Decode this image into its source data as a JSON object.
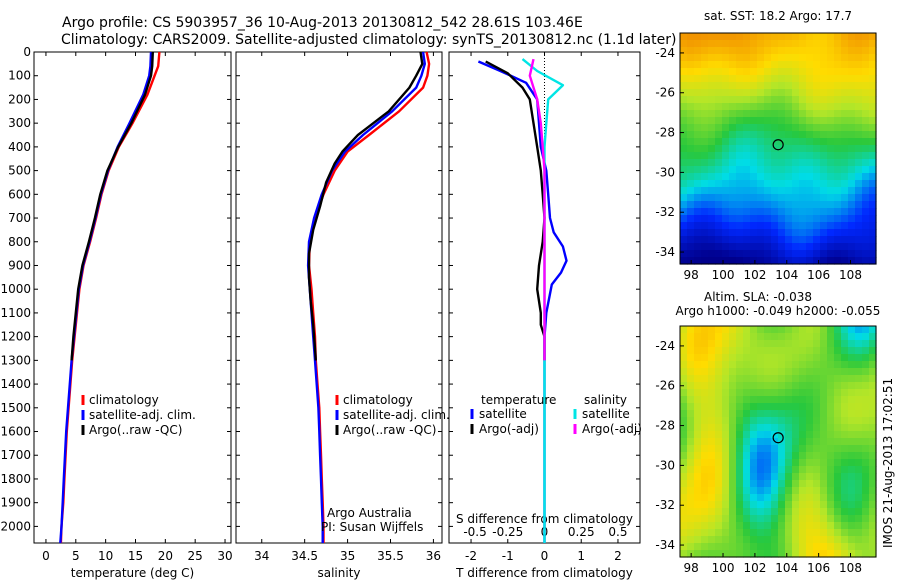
{
  "header": {
    "line1": "Argo profile: CS 5903957_36 10-Aug-2013 20130812_542 28.61S 103.46E",
    "line2": "Climatology: CARS2009. Satellite-adjusted climatology: synTS_20130812.nc (1.1d later)"
  },
  "colors": {
    "climatology": "#ff0000",
    "satellite": "#0000ff",
    "argo": "#000000",
    "cyan": "#00e5e5",
    "magenta": "#ff00ff"
  },
  "chart_data": [
    {
      "type": "line",
      "xlabel": "temperature (deg C)",
      "xlim": [
        -2,
        31
      ],
      "xticks": [
        0,
        5,
        10,
        15,
        20,
        25,
        30
      ],
      "ylim": [
        0,
        2070
      ],
      "yticks": [
        0,
        100,
        200,
        300,
        400,
        500,
        600,
        700,
        800,
        900,
        1000,
        1100,
        1200,
        1300,
        1400,
        1500,
        1600,
        1700,
        1800,
        1900,
        2000
      ],
      "legend": [
        "climatology",
        "satellite-adj. clim.",
        "Argo(..raw -QC)"
      ],
      "series": [
        {
          "name": "climatology",
          "color": "climatology",
          "points": [
            [
              19,
              0
            ],
            [
              18.8,
              60
            ],
            [
              18.2,
              100
            ],
            [
              17,
              180
            ],
            [
              14.5,
              300
            ],
            [
              12.2,
              400
            ],
            [
              10.5,
              500
            ],
            [
              9.3,
              600
            ],
            [
              8.4,
              700
            ],
            [
              7.4,
              800
            ],
            [
              6.3,
              900
            ],
            [
              5.6,
              1000
            ],
            [
              5.2,
              1100
            ],
            [
              4.8,
              1200
            ],
            [
              4.4,
              1300
            ],
            [
              4.1,
              1400
            ],
            [
              3.8,
              1500
            ],
            [
              3.5,
              1600
            ],
            [
              3.3,
              1700
            ],
            [
              3.1,
              1800
            ],
            [
              2.9,
              1900
            ],
            [
              2.6,
              2000
            ],
            [
              2.5,
              2070
            ]
          ]
        },
        {
          "name": "satellite-adj. clim.",
          "color": "satellite",
          "points": [
            [
              17.6,
              0
            ],
            [
              17.5,
              60
            ],
            [
              17.3,
              100
            ],
            [
              16.3,
              180
            ],
            [
              14.0,
              300
            ],
            [
              12.0,
              400
            ],
            [
              10.4,
              500
            ],
            [
              9.2,
              600
            ],
            [
              8.3,
              700
            ],
            [
              7.3,
              800
            ],
            [
              6.2,
              900
            ],
            [
              5.5,
              1000
            ],
            [
              5.1,
              1100
            ],
            [
              4.7,
              1200
            ],
            [
              4.3,
              1300
            ],
            [
              4.0,
              1400
            ],
            [
              3.7,
              1500
            ],
            [
              3.4,
              1600
            ],
            [
              3.2,
              1700
            ],
            [
              3.0,
              1800
            ],
            [
              2.8,
              1900
            ],
            [
              2.6,
              2000
            ],
            [
              2.4,
              2070
            ]
          ]
        },
        {
          "name": "Argo(..raw -QC)",
          "color": "argo",
          "points": [
            [
              17.9,
              0
            ],
            [
              17.8,
              60
            ],
            [
              17.6,
              100
            ],
            [
              16.6,
              180
            ],
            [
              14.3,
              300
            ],
            [
              12.1,
              400
            ],
            [
              10.3,
              500
            ],
            [
              9.1,
              600
            ],
            [
              8.2,
              700
            ],
            [
              7.2,
              800
            ],
            [
              6.1,
              900
            ],
            [
              5.4,
              1000
            ],
            [
              5.0,
              1100
            ],
            [
              4.6,
              1200
            ],
            [
              4.3,
              1300
            ]
          ]
        }
      ]
    },
    {
      "type": "line",
      "xlabel": "salinity",
      "xlim": [
        33.7,
        36.1
      ],
      "xticks": [
        34,
        34.5,
        35,
        35.5,
        36
      ],
      "xticklabels": [
        "34",
        "34.5",
        "35",
        "35.5",
        "36"
      ],
      "ylim": [
        0,
        2070
      ],
      "legend": [
        "climatology",
        "satellite-adj. clim.",
        "Argo(..raw -QC)"
      ],
      "annotation": [
        "Argo Australia",
        "PI: Susan Wijffels"
      ],
      "series": [
        {
          "name": "climatology",
          "color": "climatology",
          "points": [
            [
              35.92,
              0
            ],
            [
              35.95,
              50
            ],
            [
              35.93,
              100
            ],
            [
              35.88,
              150
            ],
            [
              35.6,
              250
            ],
            [
              35.25,
              350
            ],
            [
              35.0,
              420
            ],
            [
              34.85,
              500
            ],
            [
              34.72,
              600
            ],
            [
              34.62,
              700
            ],
            [
              34.56,
              800
            ],
            [
              34.55,
              900
            ],
            [
              34.58,
              1000
            ],
            [
              34.6,
              1100
            ],
            [
              34.62,
              1200
            ],
            [
              34.63,
              1300
            ],
            [
              34.65,
              1400
            ],
            [
              34.67,
              1500
            ],
            [
              34.68,
              1600
            ],
            [
              34.69,
              1700
            ],
            [
              34.7,
              1800
            ],
            [
              34.71,
              1900
            ],
            [
              34.72,
              2000
            ],
            [
              34.72,
              2070
            ]
          ]
        },
        {
          "name": "satellite-adj. clim.",
          "color": "satellite",
          "points": [
            [
              35.88,
              0
            ],
            [
              35.9,
              50
            ],
            [
              35.86,
              100
            ],
            [
              35.8,
              150
            ],
            [
              35.52,
              250
            ],
            [
              35.18,
              350
            ],
            [
              34.97,
              420
            ],
            [
              34.82,
              500
            ],
            [
              34.7,
              600
            ],
            [
              34.61,
              700
            ],
            [
              34.55,
              800
            ],
            [
              34.54,
              900
            ],
            [
              34.56,
              1000
            ],
            [
              34.58,
              1100
            ],
            [
              34.6,
              1200
            ],
            [
              34.62,
              1300
            ],
            [
              34.64,
              1400
            ],
            [
              34.66,
              1500
            ],
            [
              34.67,
              1600
            ],
            [
              34.68,
              1700
            ],
            [
              34.69,
              1800
            ],
            [
              34.7,
              1900
            ],
            [
              34.71,
              2000
            ],
            [
              34.71,
              2070
            ]
          ]
        },
        {
          "name": "Argo(..raw -QC)",
          "color": "argo",
          "points": [
            [
              35.85,
              0
            ],
            [
              35.87,
              50
            ],
            [
              35.8,
              100
            ],
            [
              35.72,
              150
            ],
            [
              35.48,
              250
            ],
            [
              35.12,
              350
            ],
            [
              34.94,
              420
            ],
            [
              34.85,
              470
            ],
            [
              34.75,
              550
            ],
            [
              34.68,
              650
            ],
            [
              34.6,
              750
            ],
            [
              34.55,
              850
            ],
            [
              34.55,
              950
            ],
            [
              34.57,
              1050
            ],
            [
              34.6,
              1150
            ],
            [
              34.62,
              1250
            ],
            [
              34.63,
              1300
            ]
          ]
        }
      ]
    },
    {
      "type": "line",
      "xlabel": "T difference from climatology",
      "xlabel_top": "S difference from climatology",
      "xlim": [
        -2.6,
        2.6
      ],
      "xticks": [
        -2,
        -1,
        0,
        1,
        2
      ],
      "xticks_top": [
        "-0.5",
        "-0.25",
        "0",
        "0.25",
        "0.5"
      ],
      "ylim": [
        0,
        2070
      ],
      "legend": {
        "temperature": [
          "satellite",
          "Argo(-adj)"
        ],
        "salinity": [
          "satellite",
          "Argo(-adj)"
        ]
      },
      "legend_headers": [
        "temperature",
        "salinity"
      ],
      "series": [
        {
          "name": "satellite",
          "group": "temperature",
          "color": "satellite",
          "points": [
            [
              -1.8,
              40
            ],
            [
              -1.2,
              80
            ],
            [
              -0.5,
              130
            ],
            [
              -0.2,
              200
            ],
            [
              -0.15,
              300
            ],
            [
              -0.1,
              400
            ],
            [
              0.05,
              500
            ],
            [
              0.1,
              600
            ],
            [
              0.15,
              700
            ],
            [
              0.25,
              760
            ],
            [
              0.5,
              820
            ],
            [
              0.6,
              880
            ],
            [
              0.45,
              930
            ],
            [
              0.2,
              980
            ],
            [
              0.05,
              1100
            ],
            [
              0,
              1200
            ],
            [
              0,
              1300
            ],
            [
              0,
              1500
            ],
            [
              0,
              1700
            ],
            [
              0,
              2070
            ]
          ]
        },
        {
          "name": "Argo(-adj)",
          "group": "temperature",
          "color": "argo",
          "points": [
            [
              -1.6,
              40
            ],
            [
              -1.0,
              90
            ],
            [
              -0.6,
              150
            ],
            [
              -0.4,
              200
            ],
            [
              -0.3,
              300
            ],
            [
              -0.2,
              400
            ],
            [
              -0.1,
              500
            ],
            [
              -0.05,
              600
            ],
            [
              0,
              700
            ],
            [
              -0.05,
              800
            ],
            [
              -0.15,
              900
            ],
            [
              -0.2,
              1000
            ],
            [
              -0.1,
              1100
            ],
            [
              -0.1,
              1150
            ],
            [
              0,
              1200
            ],
            [
              0,
              1300
            ]
          ]
        },
        {
          "name": "satellite",
          "group": "salinity",
          "color": "cyan",
          "points": [
            [
              -0.6,
              30
            ],
            [
              -0.2,
              80
            ],
            [
              0.5,
              140
            ],
            [
              0.1,
              200
            ],
            [
              0.05,
              300
            ],
            [
              0,
              400
            ],
            [
              0,
              600
            ],
            [
              0,
              800
            ],
            [
              0,
              1000
            ],
            [
              0,
              1200
            ],
            [
              0,
              1500
            ],
            [
              0,
              2070
            ]
          ]
        },
        {
          "name": "Argo(-adj)",
          "group": "salinity",
          "color": "magenta",
          "points": [
            [
              -0.3,
              30
            ],
            [
              -0.4,
              100
            ],
            [
              -0.2,
              200
            ],
            [
              -0.1,
              300
            ],
            [
              -0.05,
              400
            ],
            [
              0,
              500
            ],
            [
              0,
              700
            ],
            [
              0,
              900
            ],
            [
              0,
              1100
            ],
            [
              0,
              1300
            ]
          ]
        }
      ]
    },
    {
      "type": "heatmap",
      "title": "sat. SST: 18.2 Argo: 17.7",
      "xticks": [
        "98",
        "100",
        "102",
        "104",
        "106",
        "108"
      ],
      "yticks": [
        "-24",
        "-26",
        "-28",
        "-30",
        "-32",
        "-34"
      ],
      "marker": [
        103.46,
        -28.61
      ]
    },
    {
      "type": "heatmap",
      "title": "Altim. SLA: -0.038",
      "subtitle": "Argo h1000: -0.049 h2000: -0.055",
      "xticks": [
        "98",
        "100",
        "102",
        "104",
        "106",
        "108"
      ],
      "yticks": [
        "-24",
        "-26",
        "-28",
        "-30",
        "-32",
        "-34"
      ],
      "marker": [
        103.46,
        -28.61
      ]
    }
  ],
  "stamp": "IMOS 21-Aug-2013 17:02:51"
}
